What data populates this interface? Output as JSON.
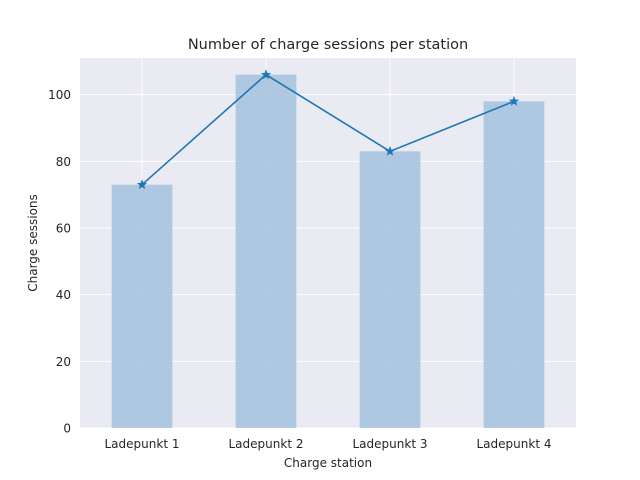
{
  "chart_data": {
    "type": "bar",
    "title": "Number of charge sessions per station",
    "xlabel": "Charge station",
    "ylabel": "Charge sessions",
    "categories": [
      "Ladepunkt 1",
      "Ladepunkt 2",
      "Ladepunkt 3",
      "Ladepunkt 4"
    ],
    "values": [
      73,
      106,
      83,
      98
    ],
    "ylim": [
      0,
      111
    ],
    "yticks": [
      0,
      20,
      40,
      60,
      80,
      100
    ],
    "ytick_labels": [
      "0",
      "20",
      "40",
      "60",
      "80",
      "100"
    ],
    "grid": true,
    "overlay_line": {
      "type": "line",
      "marker": "star",
      "values": [
        73,
        106,
        83,
        98
      ]
    },
    "colors": {
      "bar": "#a9c4e0",
      "line": "#1f77b4",
      "plot_background": "#eaeaf2",
      "grid": "#ffffff"
    }
  }
}
